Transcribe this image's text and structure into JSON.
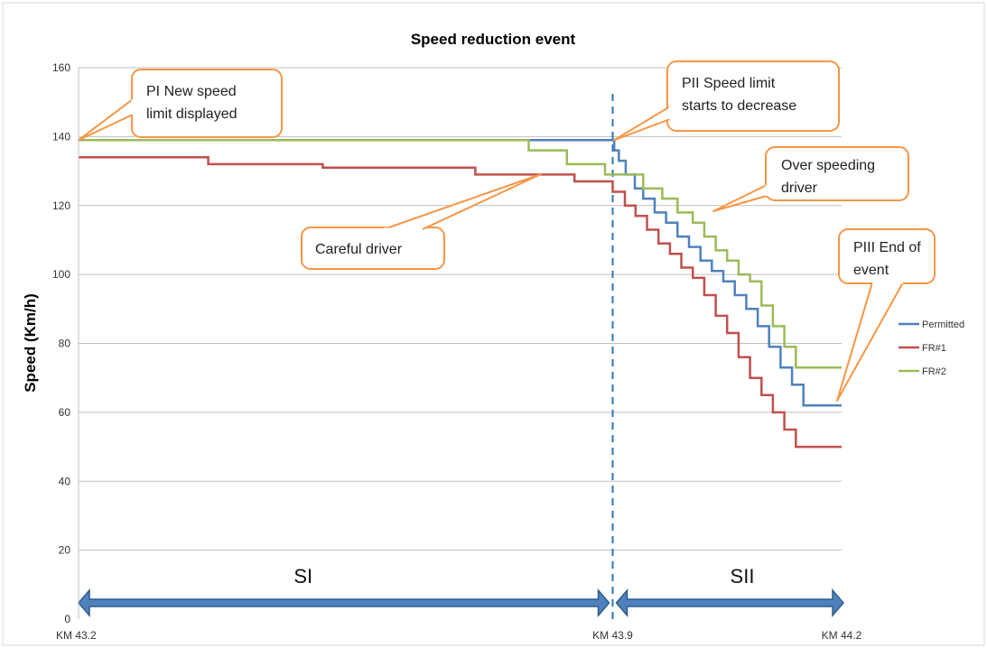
{
  "chart_data": {
    "type": "line",
    "title": "Speed reduction event",
    "ylabel": "Speed (Km/h)",
    "xlabel": "",
    "ylim": [
      0,
      160
    ],
    "y_ticks": [
      0,
      20,
      40,
      60,
      80,
      100,
      120,
      140,
      160
    ],
    "x_range_km": [
      43.2,
      44.2
    ],
    "x_tick_labels": [
      {
        "label": "KM 43.2",
        "x": 43.2
      },
      {
        "label": "KM 43.9",
        "x": 43.9
      },
      {
        "label": "KM 44.2",
        "x": 44.2
      }
    ],
    "grid": "horizontal",
    "legend_position": "right",
    "series": [
      {
        "name": "Permitted",
        "color": "#4f81bd",
        "x": [
          43.2,
          43.61,
          43.902,
          43.902,
          43.908,
          43.908,
          43.917,
          43.917,
          43.929,
          43.929,
          43.94,
          43.94,
          43.955,
          43.955,
          43.97,
          43.97,
          43.985,
          43.985,
          44.0,
          44.0,
          44.015,
          44.015,
          44.03,
          44.03,
          44.045,
          44.045,
          44.06,
          44.06,
          44.075,
          44.075,
          44.09,
          44.09,
          44.105,
          44.105,
          44.12,
          44.12,
          44.135,
          44.135,
          44.15,
          44.15,
          44.165,
          44.165,
          44.178,
          44.178,
          44.2
        ],
        "y": [
          139,
          139,
          139,
          136,
          136,
          133,
          133,
          129,
          129,
          125,
          125,
          122,
          122,
          118,
          118,
          115,
          115,
          111,
          111,
          108,
          108,
          104,
          104,
          101,
          101,
          98,
          98,
          94,
          94,
          90,
          90,
          85,
          85,
          79,
          79,
          73,
          73,
          68,
          68,
          62,
          62,
          62,
          62,
          62,
          62
        ]
      },
      {
        "name": "FR#1",
        "color": "#c0504d",
        "x": [
          43.2,
          43.37,
          43.37,
          43.52,
          43.52,
          43.72,
          43.72,
          43.85,
          43.85,
          43.9,
          43.9,
          43.916,
          43.916,
          43.93,
          43.93,
          43.945,
          43.945,
          43.96,
          43.96,
          43.975,
          43.975,
          43.99,
          43.99,
          44.005,
          44.005,
          44.02,
          44.02,
          44.035,
          44.035,
          44.05,
          44.05,
          44.065,
          44.065,
          44.08,
          44.08,
          44.095,
          44.095,
          44.11,
          44.11,
          44.125,
          44.125,
          44.14,
          44.14,
          44.155,
          44.155,
          44.18,
          44.18,
          44.2
        ],
        "y": [
          134,
          134,
          132,
          132,
          131,
          131,
          129,
          129,
          127,
          127,
          124,
          124,
          120,
          120,
          117,
          117,
          113,
          113,
          109,
          109,
          106,
          106,
          102,
          102,
          99,
          99,
          94,
          94,
          88,
          88,
          83,
          83,
          76,
          76,
          70,
          70,
          65,
          65,
          60,
          60,
          55,
          55,
          50,
          50,
          50,
          50,
          50,
          50
        ]
      },
      {
        "name": "FR#2",
        "color": "#9bbb59",
        "x": [
          43.2,
          43.79,
          43.79,
          43.84,
          43.84,
          43.89,
          43.89,
          43.94,
          43.94,
          43.965,
          43.965,
          43.985,
          43.985,
          44.005,
          44.005,
          44.02,
          44.02,
          44.035,
          44.035,
          44.05,
          44.05,
          44.065,
          44.065,
          44.08,
          44.08,
          44.095,
          44.095,
          44.11,
          44.11,
          44.125,
          44.125,
          44.14,
          44.14,
          44.155,
          44.155,
          44.17,
          44.17,
          44.185,
          44.185,
          44.2
        ],
        "y": [
          139,
          139,
          136,
          136,
          132,
          132,
          129,
          129,
          125,
          125,
          122,
          122,
          118,
          118,
          115,
          115,
          111,
          111,
          107,
          107,
          104,
          104,
          100,
          100,
          98,
          98,
          91,
          91,
          85,
          85,
          79,
          79,
          73,
          73,
          73,
          73,
          73,
          73,
          73,
          73
        ]
      }
    ],
    "annotations": [
      {
        "key": "pi",
        "lines": [
          "PI New speed",
          "limit displayed"
        ]
      },
      {
        "key": "pii",
        "lines": [
          "PII Speed limit",
          "starts to decrease"
        ]
      },
      {
        "key": "careful",
        "lines": [
          "Careful driver"
        ]
      },
      {
        "key": "over",
        "lines": [
          "Over speeding",
          "driver"
        ]
      },
      {
        "key": "piii",
        "lines": [
          "PIII End of",
          "event"
        ]
      }
    ],
    "sections": [
      {
        "label": "SI"
      },
      {
        "label": "SII"
      }
    ],
    "divider_x": 43.9,
    "colors": {
      "callout_stroke": "#f79646",
      "arrow_fill": "#4f81bd",
      "arrow_stroke": "#2e5c8a",
      "divider": "#2e75b6"
    }
  }
}
